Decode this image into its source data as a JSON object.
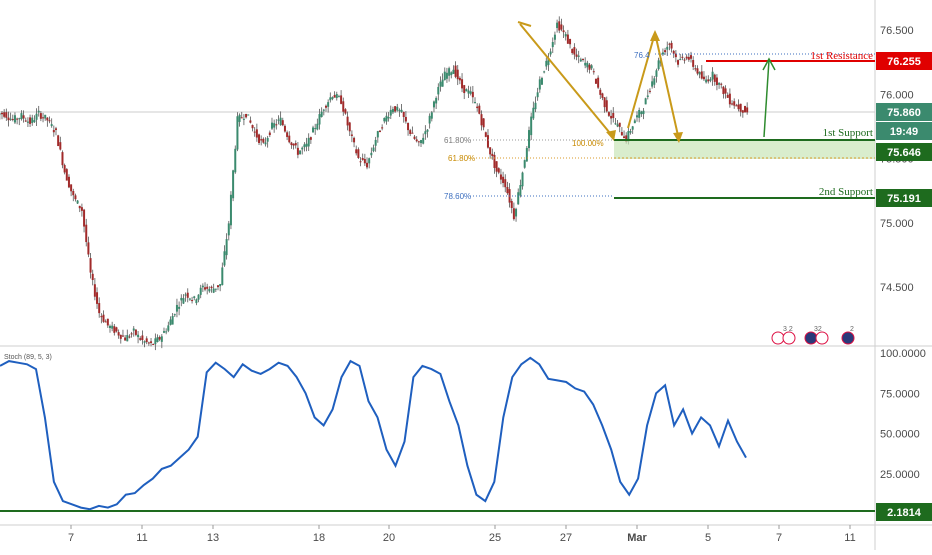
{
  "chart_data": [
    {
      "type": "candlestick",
      "pair_panel": "price",
      "x_tick_labels": [
        "7",
        "11",
        "13",
        "18",
        "20",
        "25",
        "27",
        "Mar",
        "5",
        "7",
        "11"
      ],
      "y_tick_labels": [
        "76.500",
        "76.000",
        "75.500",
        "75.000",
        "74.500"
      ],
      "y_range": [
        74.0,
        76.75
      ],
      "colors": {
        "up": "#3b8a6e",
        "down": "#a12a2a",
        "wick": "#555555"
      },
      "price_path_close": [
        75.85,
        75.8,
        75.83,
        75.78,
        75.85,
        75.8,
        75.7,
        75.4,
        75.2,
        75.1,
        74.6,
        74.3,
        74.2,
        74.15,
        74.1,
        74.15,
        74.08,
        74.05,
        74.1,
        74.2,
        74.35,
        74.45,
        74.4,
        74.5,
        74.48,
        74.52,
        75.0,
        75.8,
        75.85,
        75.7,
        75.6,
        75.75,
        75.8,
        75.65,
        75.55,
        75.6,
        75.75,
        75.9,
        76.0,
        75.95,
        75.7,
        75.5,
        75.45,
        75.65,
        75.8,
        75.9,
        75.85,
        75.7,
        75.6,
        75.75,
        76.0,
        76.15,
        76.2,
        76.05,
        76.0,
        75.85,
        75.6,
        75.4,
        75.3,
        75.05,
        75.4,
        75.8,
        76.1,
        76.3,
        76.55,
        76.45,
        76.3,
        76.25,
        76.2,
        76.0,
        75.85,
        75.75,
        75.65,
        75.8,
        75.9,
        76.1,
        76.3,
        76.4,
        76.25,
        76.3,
        76.2,
        76.1,
        76.15,
        76.05,
        75.95,
        75.9,
        75.86
      ],
      "annotations": [
        {
          "label": "1st Resistance",
          "price": 76.255,
          "color": "#e00000"
        },
        {
          "label": "1st Support",
          "price": 75.646,
          "color": "#1e6b1e"
        },
        {
          "label": "2nd Support",
          "price": 75.191,
          "color": "#1e6b1e"
        }
      ],
      "fib_labels": [
        {
          "text": "61.80%",
          "price": 75.646,
          "color": "#7a7a7a"
        },
        {
          "text": "61.80%",
          "price": 75.55,
          "color": "#c88a00"
        },
        {
          "text": "78.60%",
          "price": 75.191,
          "color": "#3d6fbf"
        },
        {
          "text": "100.00%",
          "price": 75.646,
          "color": "#c88a00"
        },
        {
          "text": "76.4",
          "price": 76.33,
          "color": "#3d6fbf"
        }
      ],
      "price_badges": [
        {
          "label": "76.255",
          "bg": "#e00000",
          "fg": "#ffffff",
          "price": 76.255
        },
        {
          "label": "75.860",
          "bg": "#3b8a6e",
          "fg": "#ffffff",
          "price": 75.86
        },
        {
          "label": "19:49",
          "bg": "#3b8a6e",
          "fg": "#ffffff",
          "price": 75.75
        },
        {
          "label": "75.646",
          "bg": "#1e6b1e",
          "fg": "#ffffff",
          "price": 75.646
        },
        {
          "label": "75.191",
          "bg": "#1e6b1e",
          "fg": "#ffffff",
          "price": 75.191
        }
      ]
    },
    {
      "type": "line",
      "title": "Stoch (89, 5, 3)",
      "y_tick_labels": [
        "100.0000",
        "75.0000",
        "50.0000",
        "25.0000"
      ],
      "y_range": [
        0,
        100
      ],
      "series": [
        {
          "color": "#1f5fbf",
          "values": [
            92,
            95,
            94,
            93,
            90,
            60,
            20,
            8,
            6,
            4,
            3,
            5,
            4,
            6,
            12,
            13,
            18,
            22,
            28,
            30,
            35,
            40,
            48,
            88,
            94,
            90,
            85,
            93,
            89,
            87,
            90,
            94,
            92,
            85,
            75,
            60,
            55,
            65,
            85,
            95,
            92,
            70,
            60,
            40,
            30,
            45,
            85,
            92,
            90,
            87,
            70,
            55,
            30,
            12,
            8,
            20,
            60,
            85,
            93,
            97,
            93,
            84,
            83,
            82,
            78,
            76,
            68,
            55,
            40,
            20,
            12,
            22,
            55,
            75,
            80,
            55,
            65,
            50,
            60,
            55,
            42,
            58,
            45,
            35
          ]
        }
      ],
      "reference_line": {
        "value": 2.1814,
        "label": "2.1814",
        "color": "#1e6b1e"
      }
    }
  ],
  "ui": {
    "indicator_title": "Stoch (89, 5, 3)",
    "event_icons": [
      "3 2",
      "32",
      "2"
    ]
  }
}
